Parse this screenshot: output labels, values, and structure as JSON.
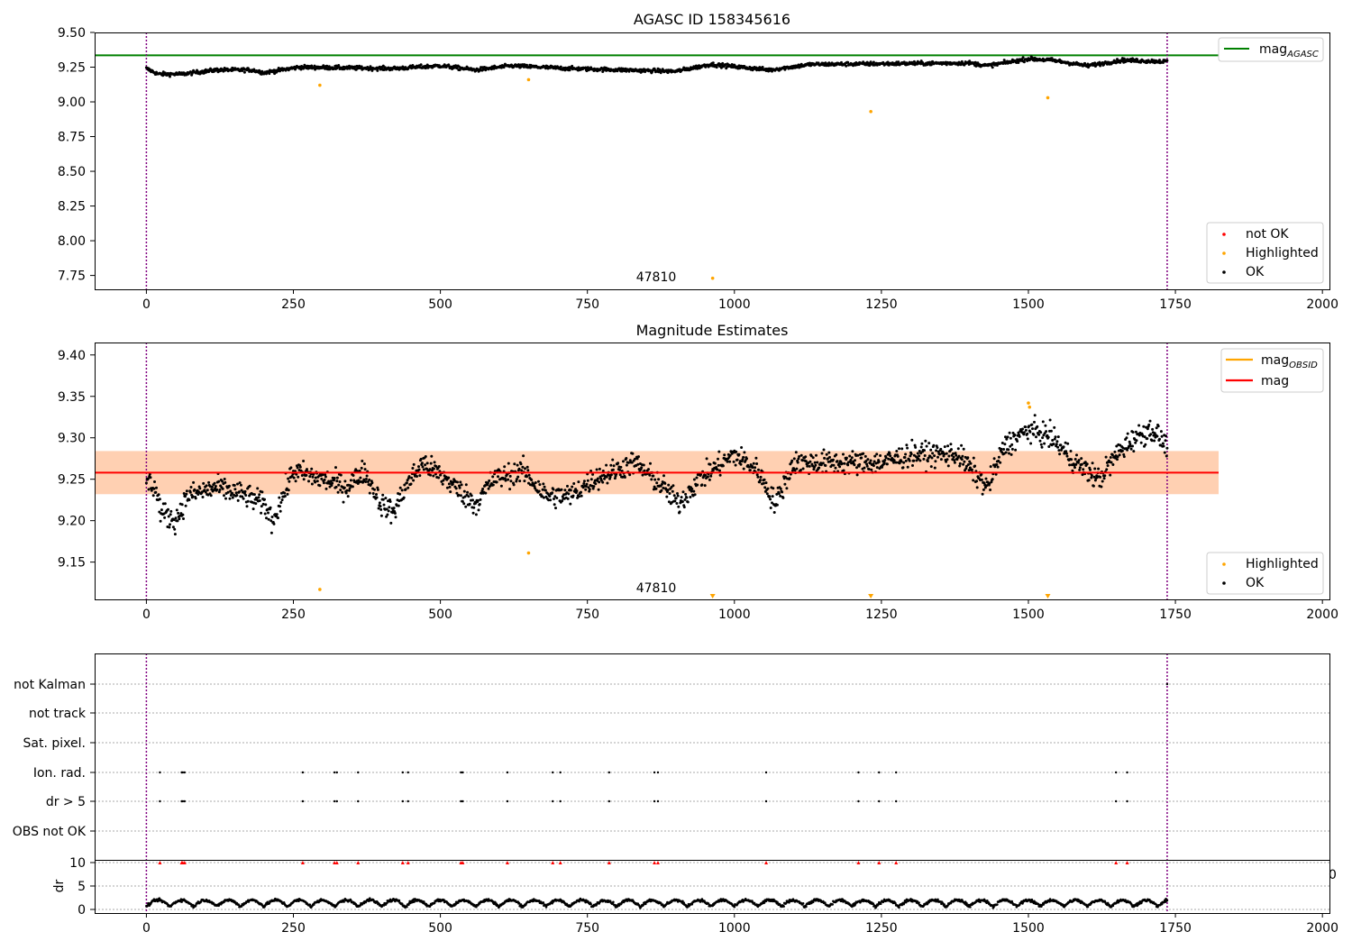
{
  "chart_data": [
    {
      "type": "scatter",
      "title": "AGASC ID 158345616",
      "xlim": [
        -88,
        2012
      ],
      "ylim": [
        7.65,
        9.5
      ],
      "xticks": [
        0,
        250,
        500,
        750,
        1000,
        1250,
        1500,
        1750,
        2000
      ],
      "yticks": [
        "9.50",
        "9.25",
        "9.00",
        "8.75",
        "8.50",
        "8.25",
        "8.00",
        "7.75"
      ],
      "vlines": [
        0,
        1736
      ],
      "obsid_label": {
        "x": 869,
        "y": 7.7,
        "text": "47810"
      },
      "mag_agasc": 9.335,
      "ok_baseline": [
        [
          0,
          9.24
        ],
        [
          20,
          9.2
        ],
        [
          60,
          9.2
        ],
        [
          120,
          9.23
        ],
        [
          180,
          9.23
        ],
        [
          200,
          9.21
        ],
        [
          260,
          9.25
        ],
        [
          420,
          9.24
        ],
        [
          500,
          9.26
        ],
        [
          560,
          9.23
        ],
        [
          620,
          9.26
        ],
        [
          720,
          9.24
        ],
        [
          900,
          9.22
        ],
        [
          960,
          9.27
        ],
        [
          1060,
          9.23
        ],
        [
          1130,
          9.27
        ],
        [
          1400,
          9.28
        ],
        [
          1430,
          9.26
        ],
        [
          1500,
          9.31
        ],
        [
          1540,
          9.3
        ],
        [
          1600,
          9.26
        ],
        [
          1660,
          9.3
        ],
        [
          1736,
          9.29
        ]
      ],
      "highlighted_points": [
        [
          295,
          9.12
        ],
        [
          650,
          9.16
        ],
        [
          963,
          7.73
        ],
        [
          1232,
          8.93
        ],
        [
          1533,
          9.03
        ]
      ],
      "legends": {
        "line": [
          "mag_AGASC"
        ],
        "line_main": "mag",
        "line_sub": "AGASC",
        "points": [
          "not OK",
          "Highlighted",
          "OK"
        ]
      }
    },
    {
      "type": "scatter",
      "title": "Magnitude Estimates",
      "xlim": [
        -88,
        2012
      ],
      "ylim": [
        9.105,
        9.415
      ],
      "xticks": [
        0,
        250,
        500,
        750,
        1000,
        1250,
        1500,
        1750,
        2000
      ],
      "yticks": [
        "9.40",
        "9.35",
        "9.30",
        "9.25",
        "9.20",
        "9.15"
      ],
      "vlines": [
        0,
        1736
      ],
      "obsid_label": {
        "x": 869,
        "y": 9.11,
        "text": "47810"
      },
      "mag": 9.258,
      "mag_band": [
        9.232,
        9.284
      ],
      "ok_baseline": [
        [
          0,
          9.25
        ],
        [
          15,
          9.24
        ],
        [
          25,
          9.21
        ],
        [
          50,
          9.2
        ],
        [
          70,
          9.23
        ],
        [
          120,
          9.24
        ],
        [
          170,
          9.23
        ],
        [
          200,
          9.22
        ],
        [
          215,
          9.2
        ],
        [
          250,
          9.26
        ],
        [
          300,
          9.25
        ],
        [
          340,
          9.24
        ],
        [
          370,
          9.26
        ],
        [
          400,
          9.22
        ],
        [
          420,
          9.21
        ],
        [
          440,
          9.24
        ],
        [
          470,
          9.27
        ],
        [
          510,
          9.25
        ],
        [
          560,
          9.22
        ],
        [
          590,
          9.25
        ],
        [
          640,
          9.26
        ],
        [
          680,
          9.23
        ],
        [
          720,
          9.23
        ],
        [
          760,
          9.25
        ],
        [
          830,
          9.27
        ],
        [
          880,
          9.24
        ],
        [
          905,
          9.22
        ],
        [
          940,
          9.25
        ],
        [
          1000,
          9.28
        ],
        [
          1040,
          9.26
        ],
        [
          1070,
          9.22
        ],
        [
          1100,
          9.27
        ],
        [
          1150,
          9.27
        ],
        [
          1200,
          9.27
        ],
        [
          1250,
          9.27
        ],
        [
          1300,
          9.28
        ],
        [
          1380,
          9.28
        ],
        [
          1430,
          9.24
        ],
        [
          1460,
          9.29
        ],
        [
          1500,
          9.31
        ],
        [
          1540,
          9.3
        ],
        [
          1580,
          9.27
        ],
        [
          1600,
          9.26
        ],
        [
          1620,
          9.25
        ],
        [
          1650,
          9.28
        ],
        [
          1680,
          9.3
        ],
        [
          1710,
          9.31
        ],
        [
          1736,
          9.29
        ]
      ],
      "highlighted_points": [
        [
          295,
          9.117
        ],
        [
          650,
          9.161
        ],
        [
          1500,
          9.342
        ],
        [
          1502,
          9.337
        ]
      ],
      "highlighted_lower_markers": [
        963,
        1232,
        1533
      ],
      "legends": {
        "line": [
          "mag_OBSID",
          "mag"
        ],
        "line_main": "mag",
        "line_sub": "OBSID",
        "points": [
          "Highlighted",
          "OK"
        ]
      }
    },
    {
      "type": "scatter",
      "title": "",
      "xlim": [
        -88,
        2012
      ],
      "xticks": [
        0,
        250,
        500,
        750,
        1000,
        1250,
        1500,
        1750,
        2000
      ],
      "vlines": [
        0,
        1736
      ],
      "categories": [
        "not Kalman",
        "not track",
        "Sat. pixel.",
        "Ion. rad.",
        "dr > 5",
        "OBS not OK"
      ],
      "flag_events": [
        23,
        60,
        62,
        65,
        266,
        320,
        324,
        360,
        436,
        445,
        535,
        538,
        614,
        691,
        704,
        787,
        864,
        870,
        1054,
        1211,
        1246,
        1275,
        1649,
        1668
      ],
      "flag_rows": [
        "Ion. rad.",
        "dr > 5"
      ],
      "not_kalman_marker": 1736,
      "dr_subplot": {
        "ylabel": "dr",
        "ylim": [
          -0.5,
          10.5
        ],
        "yticks": [
          "10",
          "5",
          "0"
        ],
        "threshold_markers_y": 10,
        "clipped_tick": "0"
      }
    }
  ]
}
